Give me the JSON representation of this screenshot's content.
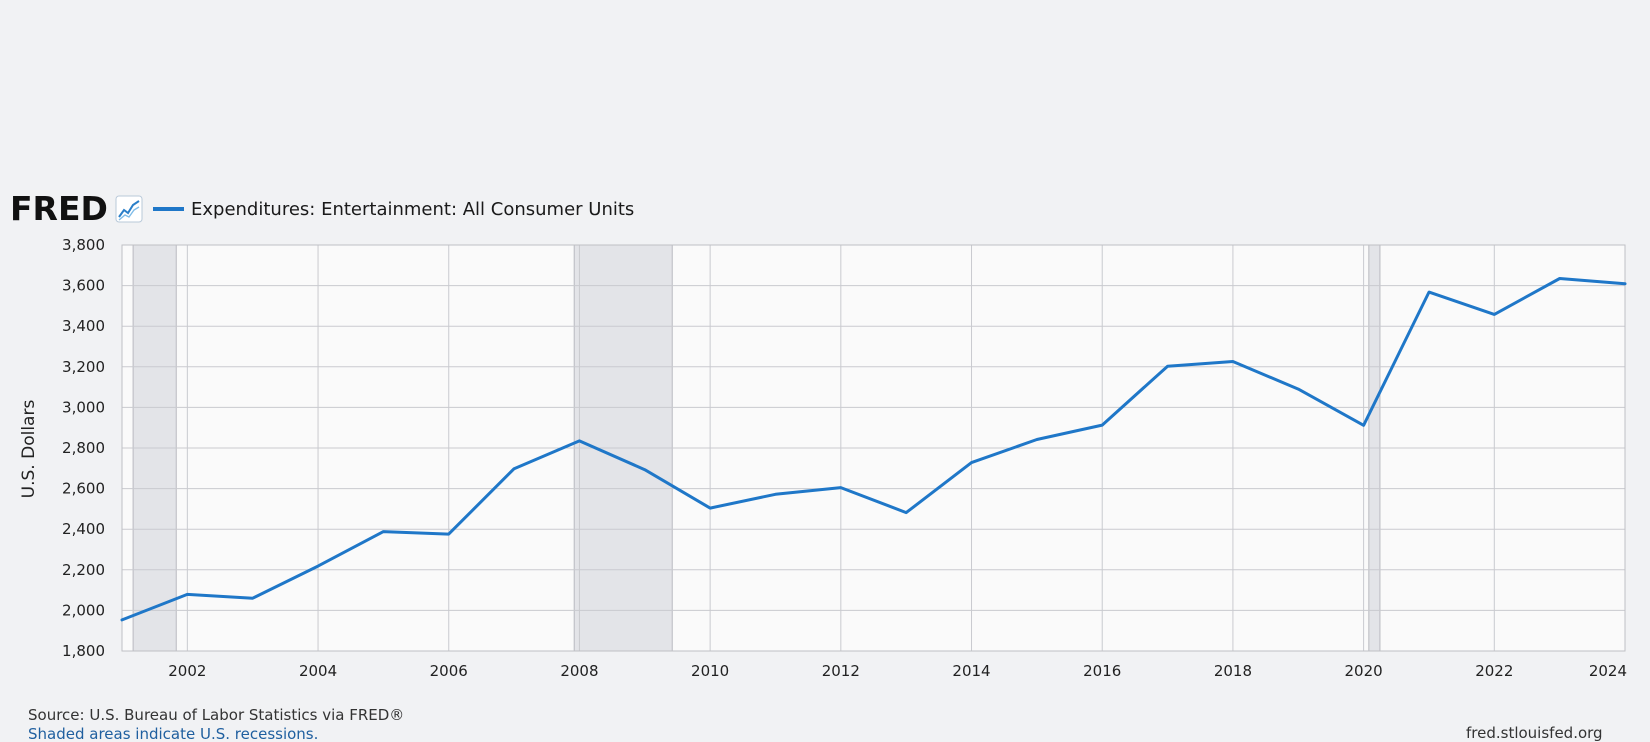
{
  "logo": {
    "text": "FRED",
    "icon": "line-graph-icon"
  },
  "colors": {
    "series": "#1f77c8",
    "recession": "#e3e4e8",
    "grid": "#c9cacf",
    "background": "#f1f2f4"
  },
  "footer": {
    "source": "Source: U.S. Bureau of Labor Statistics via FRED®",
    "recession_note": "Shaded areas indicate U.S. recessions.",
    "site": "fred.stlouisfed.org"
  },
  "chart_data": {
    "type": "line",
    "title": "",
    "xlabel": "",
    "ylabel": "U.S. Dollars",
    "legend_placement": "top-left",
    "grid": true,
    "ylim": [
      1800,
      3800
    ],
    "xlim": [
      2001,
      2024
    ],
    "y_ticks": [
      "1,800",
      "2,000",
      "2,200",
      "2,400",
      "2,600",
      "2,800",
      "3,000",
      "3,200",
      "3,400",
      "3,600",
      "3,800"
    ],
    "x_ticks": [
      "2002",
      "2004",
      "2006",
      "2008",
      "2010",
      "2012",
      "2014",
      "2016",
      "2018",
      "2020",
      "2022",
      "2024"
    ],
    "recessions": [
      {
        "start": 2001.17,
        "end": 2001.83
      },
      {
        "start": 2007.92,
        "end": 2009.42
      },
      {
        "start": 2020.08,
        "end": 2020.25
      }
    ],
    "series": [
      {
        "name": "Expenditures: Entertainment: All Consumer Units",
        "x": [
          2001,
          2002,
          2003,
          2004,
          2005,
          2006,
          2007,
          2008,
          2009,
          2010,
          2011,
          2012,
          2013,
          2014,
          2015,
          2016,
          2017,
          2018,
          2019,
          2020,
          2021,
          2022,
          2023,
          2024
        ],
        "values": [
          1953,
          2079,
          2060,
          2218,
          2388,
          2376,
          2698,
          2835,
          2693,
          2504,
          2572,
          2605,
          2482,
          2728,
          2842,
          2913,
          3203,
          3226,
          3090,
          2912,
          3568,
          3458,
          3635,
          3609
        ]
      }
    ]
  }
}
